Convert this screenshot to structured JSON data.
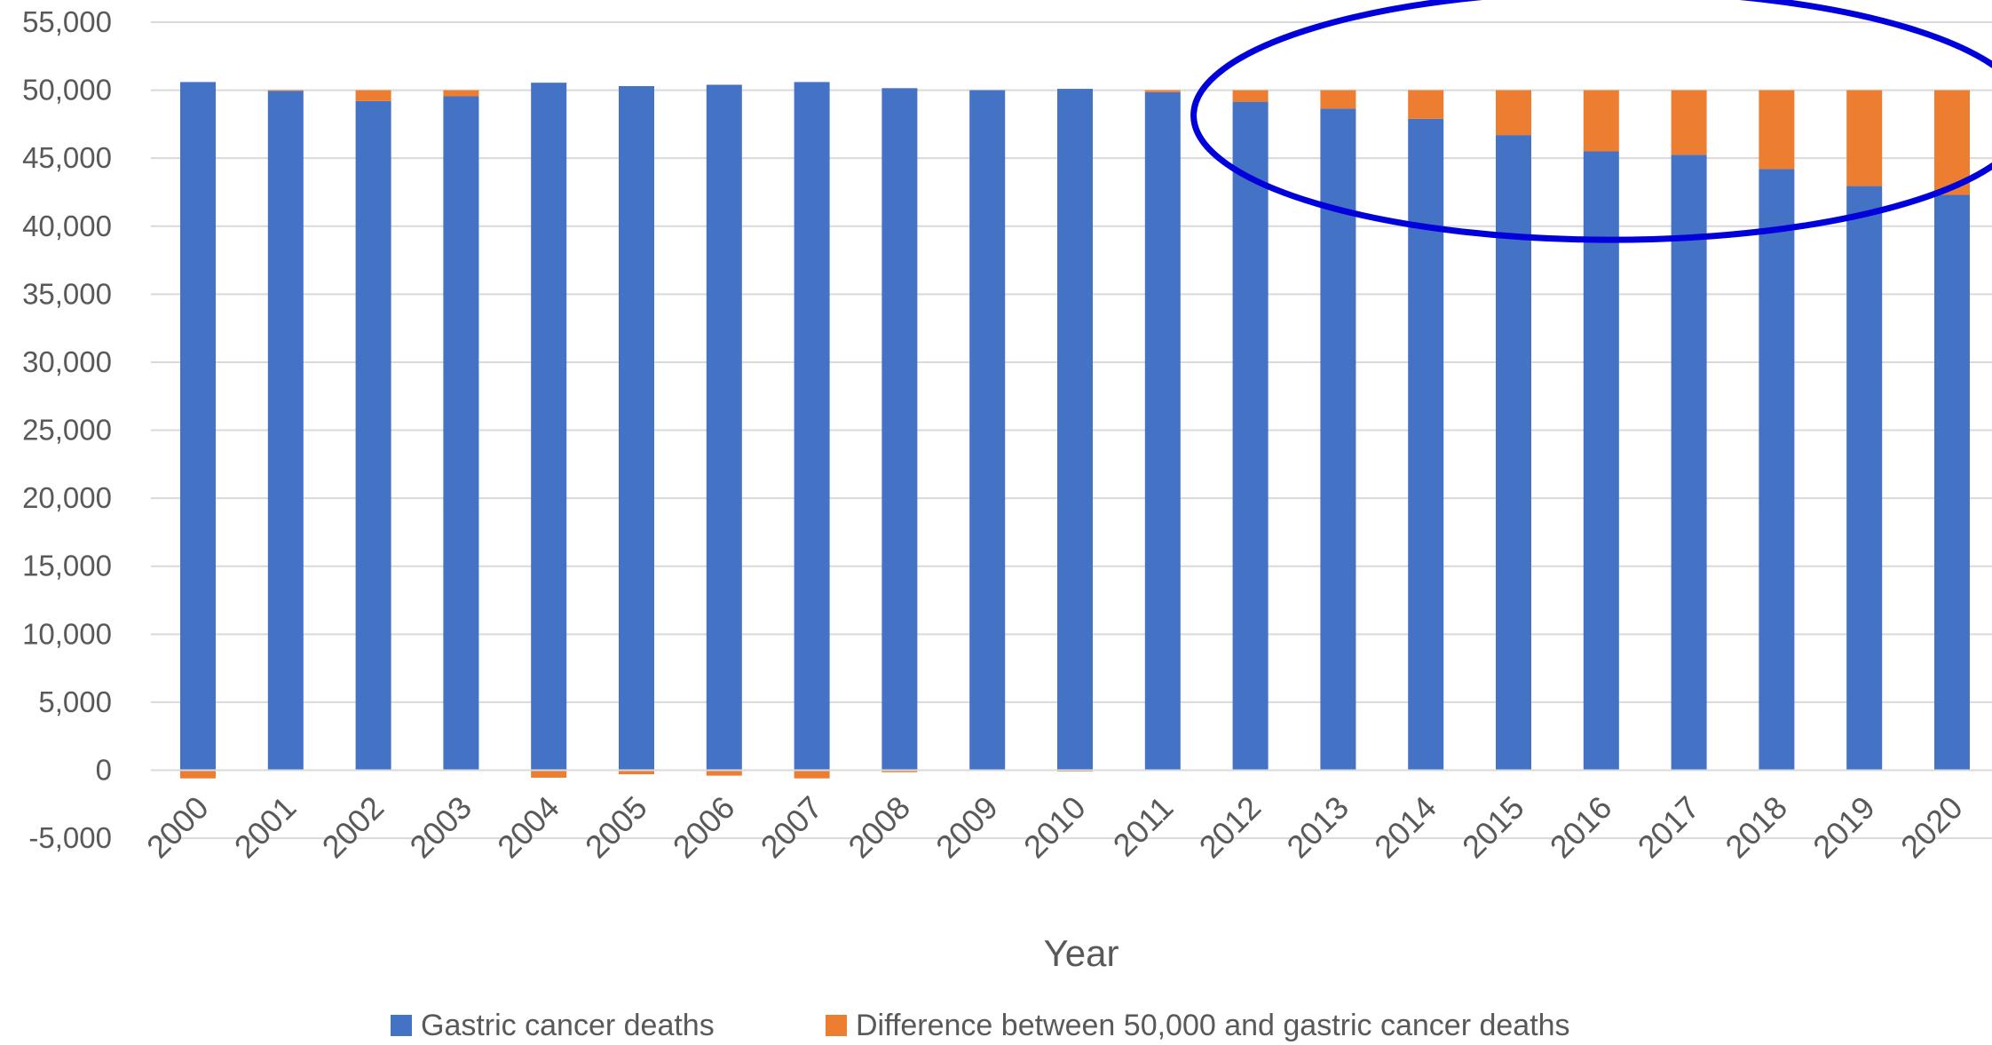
{
  "chart_data": {
    "type": "bar",
    "stacked": true,
    "categories": [
      "2000",
      "2001",
      "2002",
      "2003",
      "2004",
      "2005",
      "2006",
      "2007",
      "2008",
      "2009",
      "2010",
      "2011",
      "2012",
      "2013",
      "2014",
      "2015",
      "2016",
      "2017",
      "2018",
      "2019",
      "2020"
    ],
    "series": [
      {
        "name": "Gastric cancer deaths",
        "color": "#4472C4",
        "values": [
          50600,
          49950,
          49200,
          49550,
          50550,
          50300,
          50400,
          50600,
          50150,
          50000,
          50100,
          49850,
          49150,
          48650,
          47900,
          46700,
          45500,
          45250,
          44200,
          42950,
          42300
        ]
      },
      {
        "name": "Difference between 50,000 and gastric cancer deaths",
        "color": "#ED7D31",
        "values": [
          -600,
          50,
          800,
          450,
          -550,
          -300,
          -400,
          -600,
          -150,
          0,
          -100,
          150,
          850,
          1350,
          2100,
          3300,
          4500,
          4750,
          5800,
          7050,
          7700
        ]
      }
    ],
    "xlabel": "Year",
    "ylabel": "",
    "ylim": [
      -5000,
      55000
    ],
    "yticks": [
      "-5,000",
      "0",
      "5,000",
      "10,000",
      "15,000",
      "20,000",
      "25,000",
      "30,000",
      "35,000",
      "40,000",
      "45,000",
      "50,000",
      "55,000"
    ],
    "grid": true,
    "legend_position": "bottom",
    "annotation": {
      "shape": "ellipse",
      "color": "#0000DD",
      "covers_categories": [
        "2012",
        "2020"
      ],
      "covers_y_range": [
        39000,
        56000
      ]
    }
  }
}
